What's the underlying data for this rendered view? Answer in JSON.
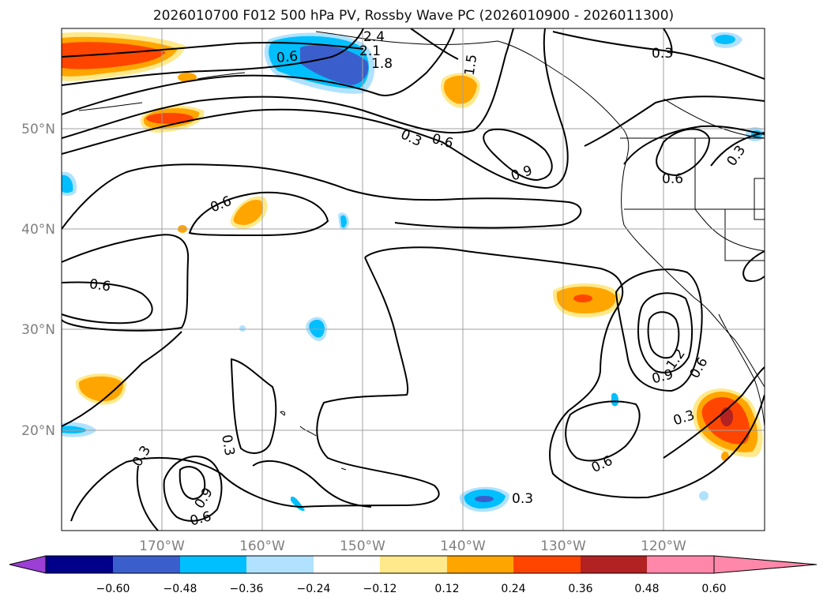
{
  "figure": {
    "title": "2026010700 F012 500 hPa PV, Rossby Wave PC (2026010900 - 2026011300)"
  },
  "map": {
    "lon_labels": [
      "170°W",
      "160°W",
      "150°W",
      "140°W",
      "130°W",
      "120°W"
    ],
    "lat_labels": [
      "50°N",
      "40°N",
      "30°N",
      "20°N"
    ],
    "contour_labels": [
      "2.4",
      "2.1",
      "1.8",
      "1.5",
      "0.3",
      "0.3",
      "0.6",
      "0.9",
      "0.6",
      "0.3",
      "0.6",
      "0.6",
      "0.3",
      "0.3",
      "0.9",
      "0.6",
      "1.2",
      "0.9",
      "0.6",
      "0.3",
      "0.6",
      "0.3",
      "0.6"
    ],
    "colorbar": {
      "colors": [
        "#9b3fd6",
        "#00008b",
        "#3a5fcd",
        "#00bfff",
        "#b0e2ff",
        "#ffffff",
        "#ffe98a",
        "#ffa500",
        "#ff4500",
        "#b22222",
        "#ff88aa"
      ],
      "tick_labels": [
        "−0.60",
        "−0.48",
        "−0.36",
        "−0.24",
        "−0.12",
        "0.12",
        "0.24",
        "0.36",
        "0.48",
        "0.60"
      ]
    }
  }
}
